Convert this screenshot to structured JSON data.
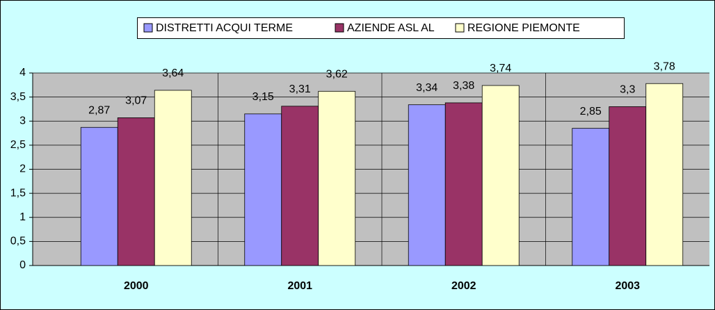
{
  "chart_data": {
    "type": "bar",
    "categories": [
      "2000",
      "2001",
      "2002",
      "2003"
    ],
    "series": [
      {
        "name": "DISTRETTI ACQUI TERME",
        "color": "#9999ff",
        "values": [
          2.87,
          3.15,
          3.34,
          2.85
        ],
        "value_labels": [
          "2,87",
          "3,15",
          "3,34",
          "2,85"
        ]
      },
      {
        "name": "AZIENDE ASL AL",
        "color": "#993366",
        "values": [
          3.07,
          3.31,
          3.38,
          3.3
        ],
        "value_labels": [
          "3,07",
          "3,31",
          "3,38",
          "3,3"
        ]
      },
      {
        "name": "REGIONE PIEMONTE",
        "color": "#ffffcc",
        "values": [
          3.64,
          3.62,
          3.74,
          3.78
        ],
        "value_labels": [
          "3,64",
          "3,62",
          "3,74",
          "3,78"
        ]
      }
    ],
    "ylim": [
      0,
      4
    ],
    "yticks": [
      0,
      {
        "value": 0.5,
        "label": "0,5"
      },
      1,
      {
        "value": 1.5,
        "label": "1,5"
      },
      2,
      {
        "value": 2.5,
        "label": "2,5"
      },
      3,
      {
        "value": 3.5,
        "label": "3,5"
      },
      4
    ],
    "grid": true,
    "legend": "top"
  }
}
